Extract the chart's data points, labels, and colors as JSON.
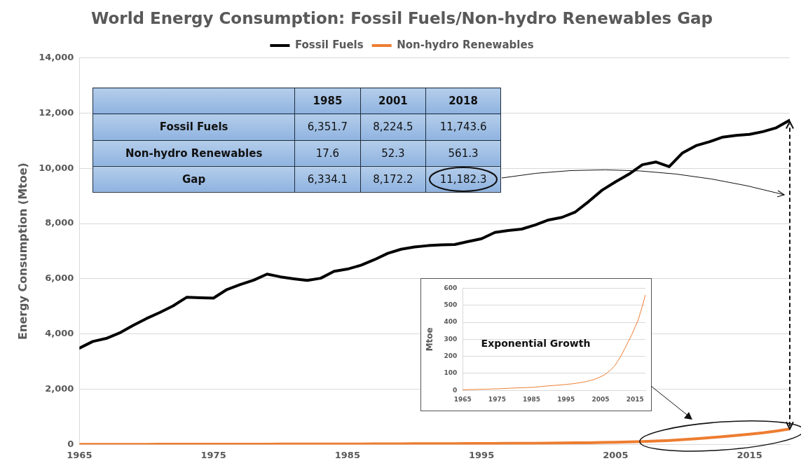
{
  "chart_data": [
    {
      "type": "line",
      "title": "World Energy Consumption: Fossil Fuels/Non-hydro Renewables Gap",
      "ylabel": "Energy Consumption (Mtoe)",
      "x": [
        1965,
        1966,
        1967,
        1968,
        1969,
        1970,
        1971,
        1972,
        1973,
        1974,
        1975,
        1976,
        1977,
        1978,
        1979,
        1980,
        1981,
        1982,
        1983,
        1984,
        1985,
        1986,
        1987,
        1988,
        1989,
        1990,
        1991,
        1992,
        1993,
        1994,
        1995,
        1996,
        1997,
        1998,
        1999,
        2000,
        2001,
        2002,
        2003,
        2004,
        2005,
        2006,
        2007,
        2008,
        2009,
        2010,
        2011,
        2012,
        2013,
        2014,
        2015,
        2016,
        2017,
        2018
      ],
      "series": [
        {
          "name": "Fossil Fuels",
          "color": "#000000",
          "values": [
            3490,
            3730,
            3840,
            4040,
            4310,
            4560,
            4780,
            5020,
            5330,
            5310,
            5300,
            5610,
            5790,
            5950,
            6170,
            6070,
            6000,
            5940,
            6020,
            6270,
            6351.7,
            6490,
            6690,
            6920,
            7070,
            7150,
            7200,
            7230,
            7240,
            7350,
            7450,
            7680,
            7750,
            7800,
            7950,
            8130,
            8224.5,
            8420,
            8800,
            9210,
            9510,
            9790,
            10130,
            10230,
            10060,
            10560,
            10820,
            10960,
            11130,
            11190,
            11230,
            11330,
            11470,
            11743.6
          ]
        },
        {
          "name": "Non-hydro Renewables",
          "color": "#ed7d31",
          "values": [
            4,
            4,
            5,
            5,
            6,
            6,
            7,
            7,
            8,
            9,
            9,
            10,
            11,
            12,
            13,
            14,
            15,
            15,
            16,
            17,
            17.6,
            19,
            21,
            23,
            25,
            27,
            28,
            30,
            31,
            33,
            35,
            37,
            39,
            42,
            45,
            49,
            52.3,
            58,
            63,
            71,
            80,
            90,
            104,
            122,
            142,
            172,
            206,
            245,
            285,
            325,
            372,
            420,
            488,
            561.3
          ]
        }
      ],
      "xlim": [
        1965,
        2018
      ],
      "xticks": [
        1965,
        1975,
        1985,
        1995,
        2005,
        2015
      ],
      "ylim": [
        0,
        14000
      ],
      "yticks": [
        0,
        {
          "value": 2000,
          "label": "2,000"
        },
        {
          "value": 4000,
          "label": "4,000"
        },
        {
          "value": 6000,
          "label": "6,000"
        },
        {
          "value": 8000,
          "label": "8,000"
        },
        {
          "value": 10000,
          "label": "10,000"
        },
        {
          "value": 12000,
          "label": "12,000"
        },
        {
          "value": 14000,
          "label": "14,000"
        }
      ],
      "grid": "y",
      "legend": "top"
    },
    {
      "type": "other",
      "categories": [
        "1985",
        "2001",
        "2018"
      ],
      "y_categories": [
        "Fossil Fuels",
        "Non-hydro Renewables",
        "Gap"
      ],
      "cell_labels": [
        [
          "6,351.7",
          "8,224.5",
          "11,743.6"
        ],
        [
          "17.6",
          "52.3",
          "561.3"
        ],
        [
          "6,334.1",
          "8,172.2",
          "11,182.3"
        ]
      ]
    },
    {
      "type": "line",
      "ylabel": "Mtoe",
      "annotations": [
        "Exponential Growth"
      ],
      "x": [
        1965,
        1966,
        1967,
        1968,
        1969,
        1970,
        1971,
        1972,
        1973,
        1974,
        1975,
        1976,
        1977,
        1978,
        1979,
        1980,
        1981,
        1982,
        1983,
        1984,
        1985,
        1986,
        1987,
        1988,
        1989,
        1990,
        1991,
        1992,
        1993,
        1994,
        1995,
        1996,
        1997,
        1998,
        1999,
        2000,
        2001,
        2002,
        2003,
        2004,
        2005,
        2006,
        2007,
        2008,
        2009,
        2010,
        2011,
        2012,
        2013,
        2014,
        2015,
        2016,
        2017,
        2018
      ],
      "series": [
        {
          "color": "#ed7d31",
          "values": [
            4,
            4,
            5,
            5,
            6,
            6,
            7,
            7,
            8,
            9,
            9,
            10,
            11,
            12,
            13,
            14,
            15,
            15,
            16,
            17,
            17.6,
            19,
            21,
            23,
            25,
            27,
            28,
            30,
            31,
            33,
            35,
            37,
            39,
            42,
            45,
            49,
            52.3,
            58,
            63,
            71,
            80,
            90,
            104,
            122,
            142,
            172,
            206,
            245,
            285,
            325,
            372,
            420,
            488,
            561.3
          ]
        }
      ],
      "xlim": [
        1965,
        2018
      ],
      "xticks": [
        1965,
        1975,
        1985,
        1995,
        2005,
        2015
      ],
      "ylim": [
        0,
        600
      ],
      "yticks": [
        0,
        100,
        200,
        300,
        400,
        500,
        600
      ],
      "grid": "y"
    }
  ]
}
